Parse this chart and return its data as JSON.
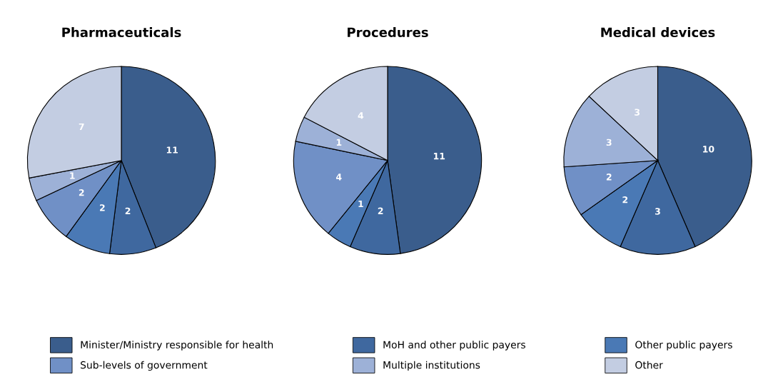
{
  "chart_data": [
    {
      "type": "pie",
      "title": "Pharmaceuticals",
      "categories": [
        "Minister/Ministry responsible for health",
        "MoH and other public payers",
        "Other public payers",
        "Sub-levels of government",
        "Multiple institutions",
        "Other"
      ],
      "values": [
        11,
        2,
        2,
        2,
        1,
        7
      ],
      "colors": [
        "#3a5d8c",
        "#3f689f",
        "#4a79b5",
        "#7090c6",
        "#9db1d7",
        "#c3cde2"
      ],
      "data_labels": true,
      "legend": "bottom"
    },
    {
      "type": "pie",
      "title": "Procedures",
      "categories": [
        null,
        null,
        null,
        null,
        null,
        null
      ],
      "values": [
        11,
        2,
        1,
        4,
        1,
        4
      ],
      "colors": [
        "#3a5d8c",
        "#3f689f",
        "#4a79b5",
        "#7090c6",
        "#9db1d7",
        "#c3cde2"
      ],
      "data_labels": true
    },
    {
      "type": "pie",
      "title": "Medical devices",
      "categories": [
        null,
        null,
        null,
        null,
        null,
        null
      ],
      "values": [
        10,
        3,
        2,
        2,
        3,
        3
      ],
      "colors": [
        "#3a5d8c",
        "#3f689f",
        "#4a79b5",
        "#7090c6",
        "#9db1d7",
        "#c3cde2"
      ],
      "data_labels": true
    }
  ]
}
